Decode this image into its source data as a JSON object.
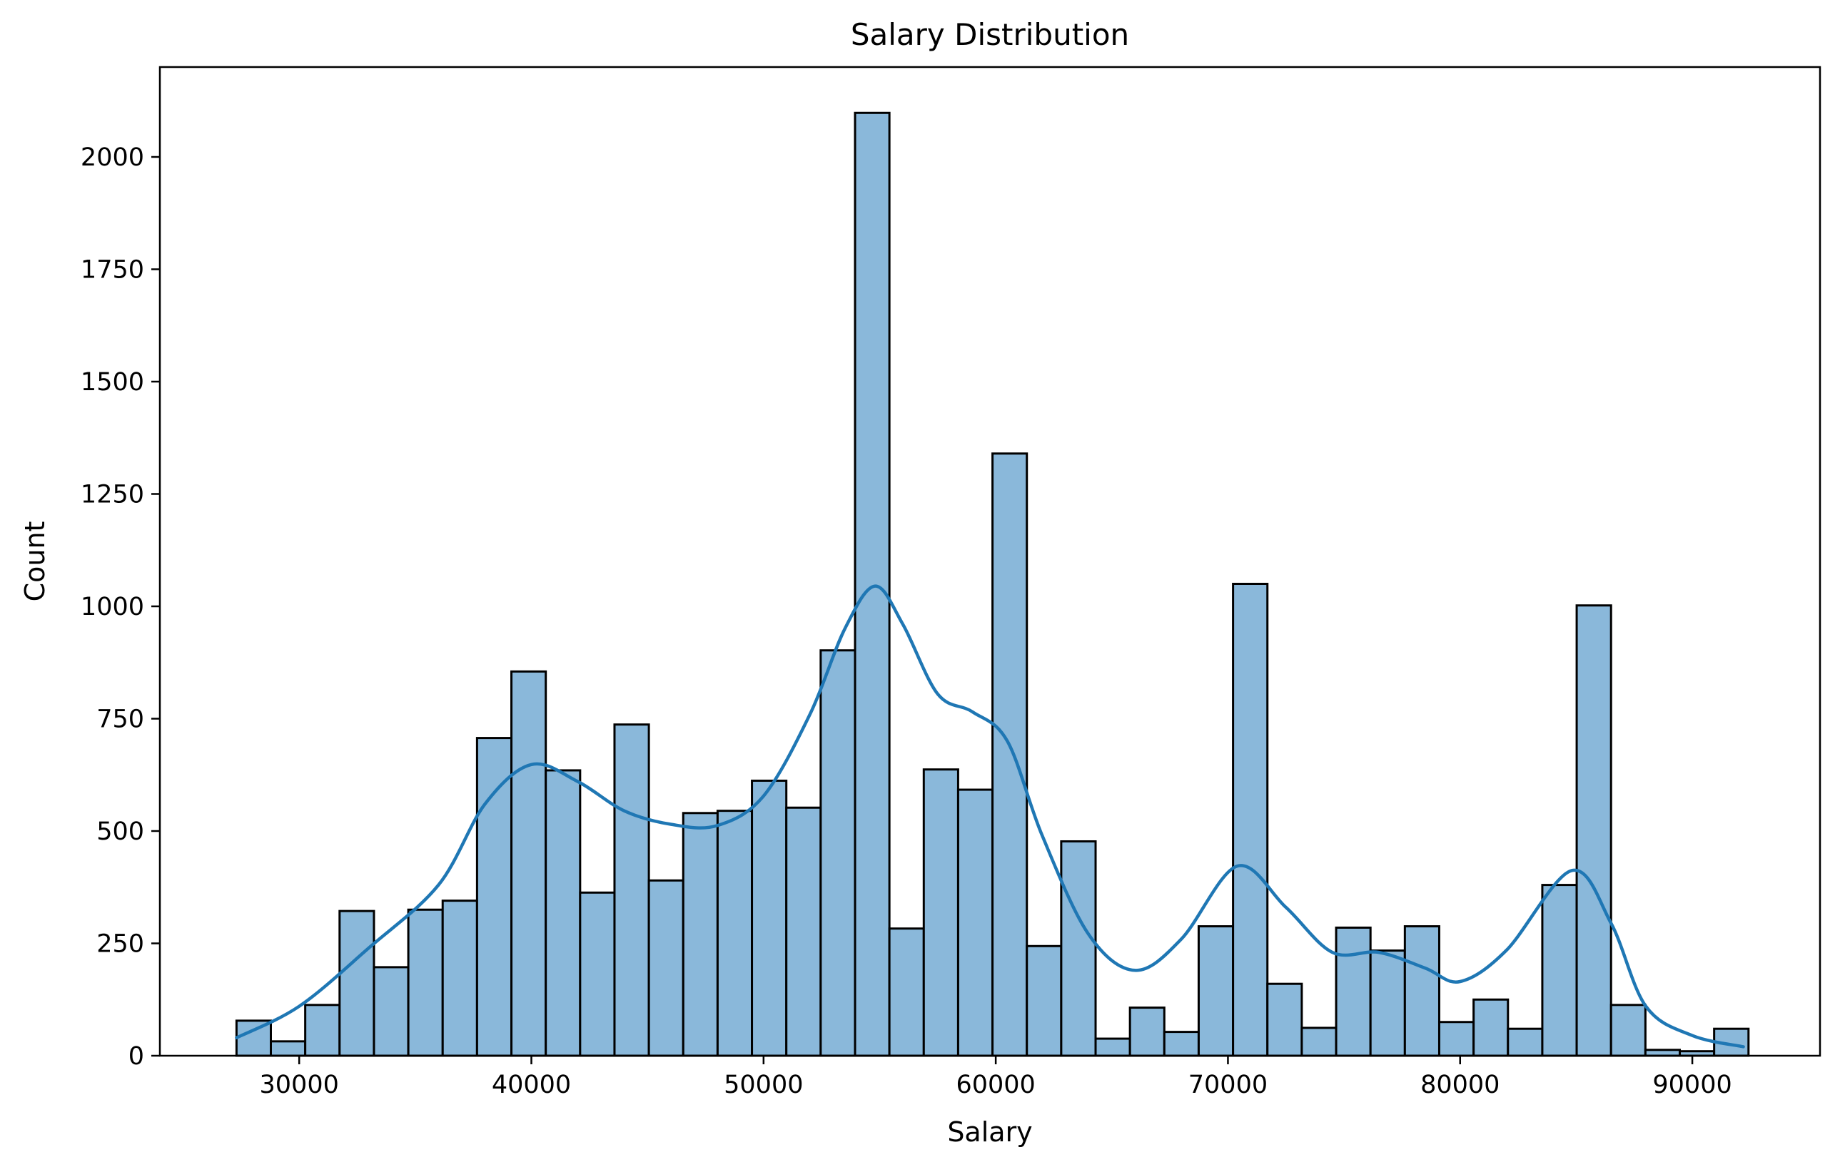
{
  "chart_data": {
    "type": "bar",
    "subtype": "histogram-with-kde",
    "title": "Salary Distribution",
    "xlabel": "Salary",
    "ylabel": "Count",
    "xlim": [
      24000,
      95500
    ],
    "ylim": [
      0,
      2200
    ],
    "xticks": [
      30000,
      40000,
      50000,
      60000,
      70000,
      80000,
      90000
    ],
    "yticks": [
      0,
      250,
      500,
      750,
      1000,
      1250,
      1500,
      1750,
      2000
    ],
    "grid": false,
    "legend": "none",
    "bin_start": 27300,
    "bin_width": 1480,
    "counts": [
      78,
      32,
      113,
      322,
      197,
      325,
      345,
      707,
      855,
      635,
      363,
      737,
      390,
      540,
      545,
      612,
      552,
      902,
      2098,
      283,
      637,
      592,
      1340,
      244,
      477,
      38,
      107,
      53,
      288,
      1050,
      160,
      62,
      285,
      234,
      288,
      75,
      125,
      60,
      380,
      1002,
      113,
      13,
      10,
      60
    ],
    "kde": {
      "x": [
        27300,
        30000,
        33000,
        36000,
        38000,
        40000,
        42000,
        44000,
        46000,
        48000,
        50000,
        52000,
        53500,
        54800,
        56000,
        57500,
        59000,
        60500,
        62000,
        64000,
        66000,
        68000,
        70400,
        72500,
        74500,
        76500,
        78500,
        80000,
        82000,
        84800,
        86500,
        88000,
        90000,
        92200
      ],
      "y": [
        40,
        110,
        240,
        380,
        560,
        648,
        610,
        545,
        515,
        512,
        578,
        760,
        950,
        1045,
        960,
        805,
        765,
        700,
        490,
        270,
        190,
        260,
        422,
        330,
        230,
        230,
        195,
        165,
        235,
        412,
        295,
        110,
        45,
        20
      ]
    },
    "colors": {
      "bar_fill": "#8ab8da",
      "bar_edge": "#000000",
      "kde_line": "#1f77b4"
    }
  }
}
